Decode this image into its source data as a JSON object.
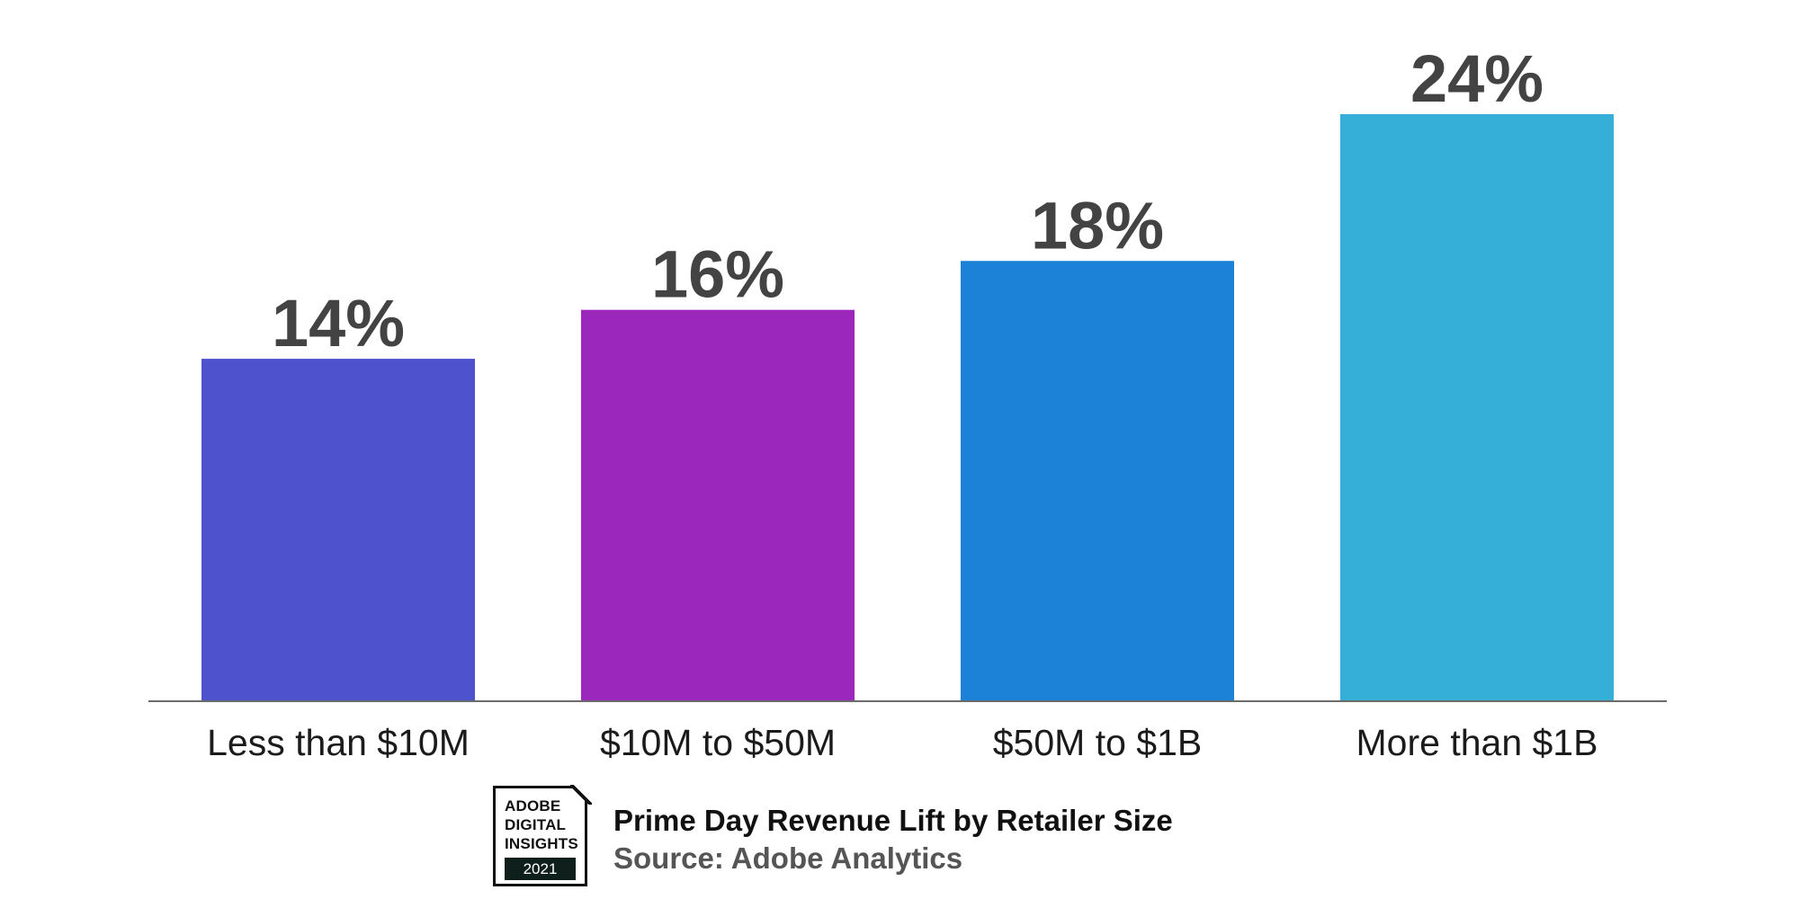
{
  "chart_data": {
    "type": "bar",
    "categories": [
      "Less than $10M",
      "$10M to $50M",
      "$50M to $1B",
      "More than $1B"
    ],
    "values": [
      14,
      16,
      18,
      24
    ],
    "value_labels": [
      "14%",
      "16%",
      "18%",
      "24%"
    ],
    "colors": [
      "#4e52cc",
      "#9b27bd",
      "#1b82d8",
      "#35aed8"
    ],
    "title": "Prime Day Revenue Lift by Retailer Size",
    "source": "Source: Adobe Analytics",
    "xlabel": "",
    "ylabel": "",
    "ylim": [
      0,
      24
    ],
    "grid": false,
    "legend": "none"
  },
  "badge": {
    "lines": [
      "ADOBE",
      "DIGITAL",
      "INSIGHTS"
    ],
    "year": "2021"
  }
}
